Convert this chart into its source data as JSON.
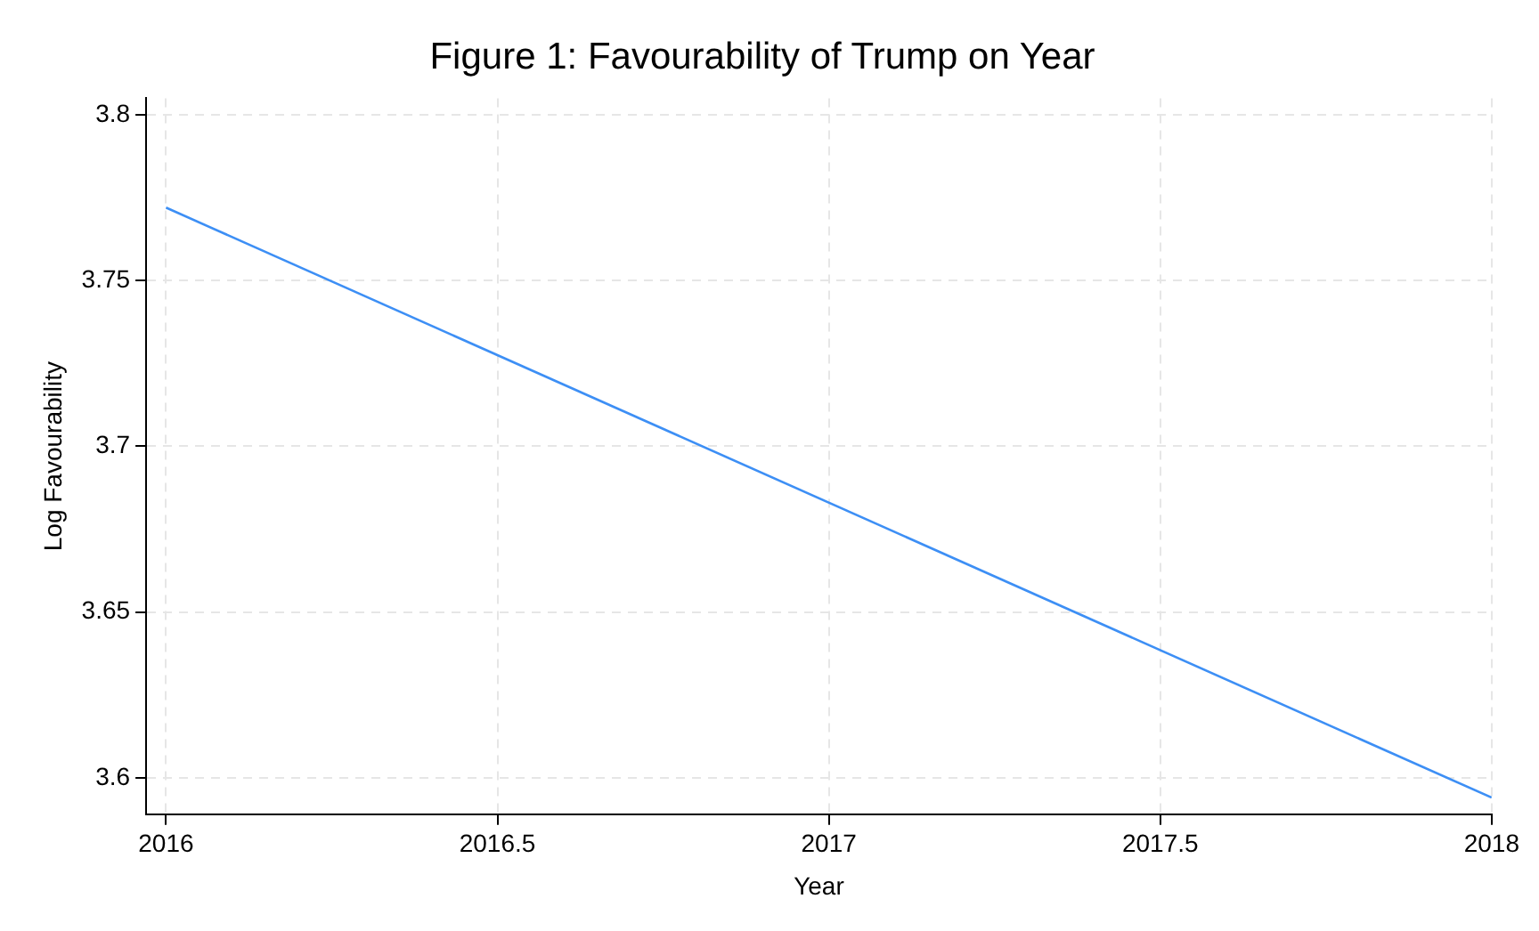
{
  "chart_data": {
    "type": "line",
    "title": "Figure 1: Favourability of Trump on Year",
    "xlabel": "Year",
    "ylabel": "Log Favourability",
    "x": [
      2016,
      2018
    ],
    "series": [
      {
        "color": "#3d8ff5",
        "values": [
          3.772,
          3.594
        ]
      }
    ],
    "xlim": [
      2015.97,
      2018.0
    ],
    "ylim": [
      3.589,
      3.805
    ],
    "xticks": [
      2016,
      2016.5,
      2017,
      2017.5,
      2018
    ],
    "yticks": [
      3.6,
      3.65,
      3.7,
      3.75,
      3.8
    ],
    "grid": true,
    "legend": false,
    "marker": "none",
    "line_style": "solid"
  }
}
